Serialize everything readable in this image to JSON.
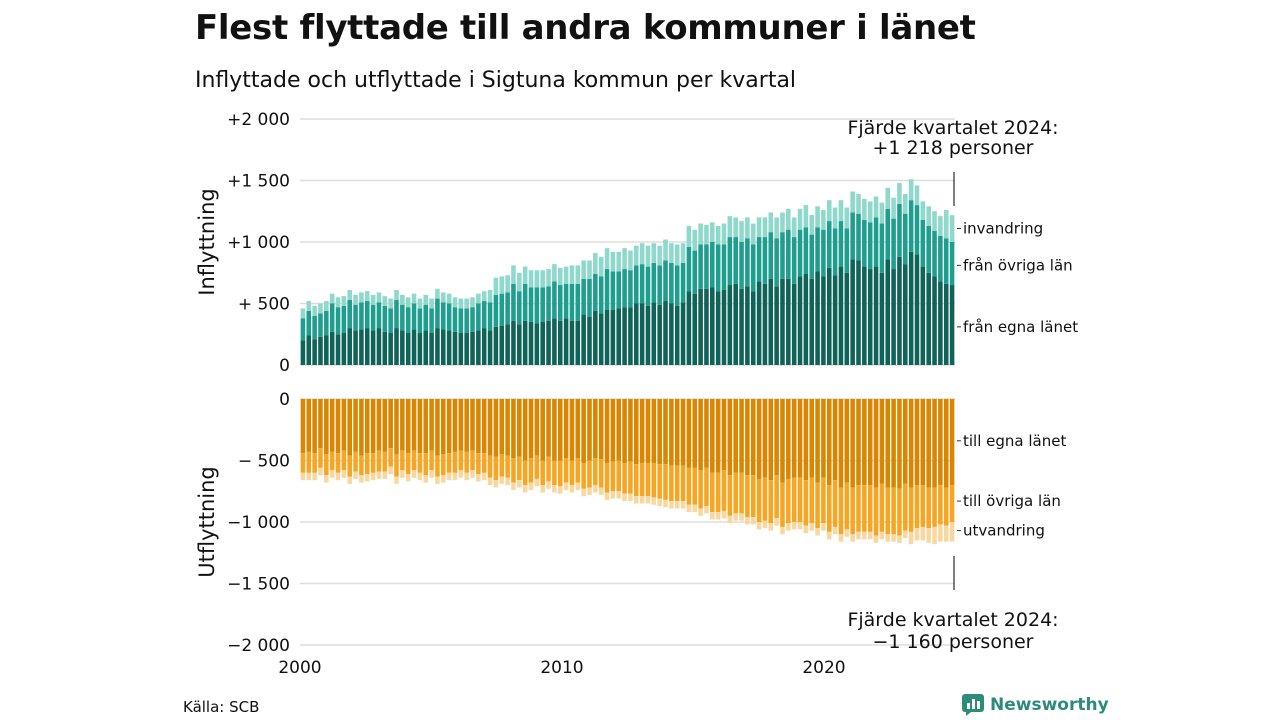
{
  "title": "Flest flyttade till andra kommuner i länet",
  "subtitle": "Inflyttade och utflyttade i Sigtuna kommun per kvartal",
  "source": "Källa: SCB",
  "brand": "Newsworthy",
  "colors": {
    "in_own": "#0f6358",
    "in_other": "#1e9e8e",
    "in_immig": "#8ed8cc",
    "out_own": "#db8600",
    "out_other": "#f7a623",
    "out_emig": "#f9d8a0",
    "grid": "#dddddd",
    "brand": "#2e8b7a"
  },
  "chart_data": {
    "type": "bar",
    "stacked": true,
    "x_range": [
      2000,
      2025
    ],
    "x_ticks": [
      "2000",
      "2010",
      "2020"
    ],
    "upper_panel": {
      "ylabel": "Inflyttning",
      "ylim": [
        0,
        2000
      ],
      "yticks": [
        {
          "v": 2000,
          "label": "+2 000"
        },
        {
          "v": 1500,
          "label": "+1 500"
        },
        {
          "v": 1000,
          "label": "+1 000"
        },
        {
          "v": 500,
          "label": "+  500"
        },
        {
          "v": 0,
          "label": "0"
        }
      ],
      "legend": [
        "invandring",
        "från övriga län",
        "från egna länet"
      ],
      "annotation": [
        "Fjärde kvartalet 2024:",
        "+1 218 personer"
      ]
    },
    "lower_panel": {
      "ylabel": "Utflyttning",
      "ylim": [
        -2000,
        0
      ],
      "yticks": [
        {
          "v": 0,
          "label": "0"
        },
        {
          "v": -500,
          "label": "−  500"
        },
        {
          "v": -1000,
          "label": "−1 000"
        },
        {
          "v": -1500,
          "label": "−1 500"
        },
        {
          "v": -2000,
          "label": "−2 000"
        }
      ],
      "legend": [
        "till egna länet",
        "till övriga län",
        "utvandring"
      ],
      "annotation": [
        "Fjärde kvartalet 2024:",
        "−1 160 personer"
      ]
    },
    "series_in": [
      {
        "name": "från egna länet",
        "values": [
          200,
          240,
          210,
          230,
          240,
          270,
          250,
          260,
          300,
          280,
          290,
          300,
          280,
          300,
          270,
          260,
          300,
          280,
          260,
          290,
          260,
          280,
          260,
          300,
          290,
          280,
          270,
          260,
          260,
          270,
          280,
          300,
          280,
          310,
          320,
          330,
          360,
          330,
          360,
          350,
          340,
          350,
          360,
          380,
          360,
          380,
          360,
          360,
          410,
          390,
          440,
          420,
          450,
          450,
          460,
          470,
          470,
          500,
          500,
          480,
          510,
          490,
          520,
          500,
          480,
          510,
          600,
          580,
          620,
          620,
          630,
          600,
          610,
          650,
          660,
          620,
          640,
          600,
          680,
          660,
          700,
          640,
          700,
          700,
          660,
          720,
          740,
          700,
          760,
          720,
          790,
          730,
          800,
          750,
          860,
          850,
          800,
          780,
          800,
          750,
          860,
          780,
          880,
          820,
          920,
          900,
          800,
          750,
          720,
          680,
          660,
          650
        ]
      },
      {
        "name": "från övriga län",
        "values": [
          180,
          200,
          190,
          190,
          200,
          230,
          220,
          220,
          230,
          210,
          220,
          220,
          210,
          210,
          210,
          200,
          230,
          210,
          210,
          210,
          200,
          210,
          200,
          240,
          220,
          220,
          200,
          200,
          200,
          200,
          220,
          220,
          230,
          260,
          260,
          260,
          300,
          270,
          300,
          280,
          290,
          280,
          280,
          300,
          290,
          280,
          300,
          300,
          290,
          310,
          300,
          300,
          330,
          310,
          300,
          310,
          300,
          310,
          320,
          320,
          320,
          320,
          330,
          330,
          330,
          320,
          360,
          350,
          360,
          360,
          370,
          380,
          370,
          390,
          380,
          380,
          390,
          380,
          360,
          380,
          380,
          390,
          380,
          400,
          380,
          380,
          380,
          360,
          360,
          380,
          380,
          380,
          370,
          360,
          380,
          380,
          380,
          380,
          400,
          400,
          410,
          410,
          430,
          410,
          420,
          400,
          380,
          380,
          370,
          370,
          370,
          350
        ]
      },
      {
        "name": "invandring",
        "values": [
          80,
          80,
          80,
          80,
          80,
          80,
          80,
          80,
          80,
          80,
          80,
          80,
          80,
          80,
          80,
          80,
          80,
          80,
          80,
          80,
          80,
          80,
          80,
          80,
          80,
          80,
          80,
          80,
          80,
          80,
          80,
          80,
          100,
          140,
          140,
          140,
          150,
          150,
          140,
          140,
          140,
          140,
          140,
          140,
          140,
          140,
          150,
          150,
          150,
          150,
          170,
          160,
          170,
          160,
          160,
          170,
          160,
          160,
          170,
          170,
          160,
          160,
          170,
          160,
          170,
          160,
          170,
          170,
          170,
          160,
          160,
          150,
          170,
          170,
          160,
          170,
          170,
          170,
          160,
          160,
          160,
          170,
          160,
          170,
          160,
          170,
          180,
          160,
          170,
          160,
          170,
          170,
          170,
          170,
          170,
          160,
          170,
          170,
          170,
          170,
          170,
          170,
          170,
          160,
          170,
          160,
          150,
          160,
          160,
          160,
          230,
          218
        ]
      }
    ],
    "series_out": [
      {
        "name": "till egna länet",
        "values": [
          440,
          430,
          440,
          400,
          450,
          430,
          440,
          420,
          460,
          430,
          460,
          440,
          440,
          420,
          430,
          400,
          450,
          420,
          440,
          420,
          440,
          440,
          420,
          460,
          450,
          440,
          430,
          420,
          430,
          420,
          440,
          440,
          460,
          470,
          450,
          460,
          480,
          470,
          500,
          480,
          460,
          500,
          470,
          500,
          500,
          480,
          500,
          480,
          520,
          500,
          480,
          490,
          520,
          510,
          500,
          520,
          510,
          530,
          520,
          520,
          520,
          530,
          530,
          540,
          540,
          540,
          560,
          560,
          580,
          560,
          600,
          600,
          580,
          620,
          600,
          600,
          620,
          620,
          650,
          640,
          660,
          620,
          680,
          650,
          640,
          640,
          660,
          640,
          680,
          640,
          700,
          660,
          720,
          680,
          720,
          700,
          700,
          700,
          720,
          690,
          720,
          720,
          730,
          690,
          720,
          700,
          700,
          720,
          720,
          700,
          720,
          700
        ]
      },
      {
        "name": "till övriga län",
        "values": [
          160,
          170,
          160,
          160,
          170,
          150,
          160,
          160,
          170,
          160,
          160,
          170,
          160,
          170,
          160,
          150,
          180,
          160,
          170,
          160,
          160,
          180,
          160,
          170,
          170,
          160,
          170,
          160,
          170,
          160,
          170,
          160,
          180,
          190,
          180,
          180,
          200,
          190,
          200,
          200,
          190,
          200,
          200,
          200,
          210,
          200,
          200,
          200,
          210,
          220,
          220,
          230,
          240,
          240,
          250,
          250,
          260,
          260,
          270,
          270,
          280,
          280,
          290,
          290,
          290,
          290,
          300,
          300,
          310,
          310,
          320,
          320,
          330,
          330,
          330,
          330,
          340,
          340,
          350,
          350,
          350,
          350,
          360,
          360,
          360,
          360,
          370,
          370,
          370,
          370,
          380,
          380,
          380,
          380,
          380,
          380,
          380,
          380,
          390,
          390,
          380,
          380,
          380,
          380,
          360,
          350,
          340,
          330,
          320,
          320,
          310,
          300
        ]
      },
      {
        "name": "utvandring",
        "values": [
          60,
          60,
          60,
          60,
          60,
          60,
          60,
          60,
          60,
          60,
          60,
          60,
          60,
          60,
          60,
          60,
          60,
          60,
          60,
          60,
          60,
          60,
          60,
          60,
          60,
          60,
          60,
          60,
          60,
          60,
          60,
          60,
          60,
          60,
          60,
          60,
          60,
          60,
          60,
          60,
          60,
          60,
          60,
          60,
          60,
          60,
          60,
          60,
          60,
          60,
          60,
          60,
          60,
          60,
          60,
          60,
          60,
          60,
          60,
          60,
          60,
          60,
          60,
          60,
          60,
          60,
          60,
          60,
          60,
          60,
          60,
          60,
          60,
          60,
          60,
          60,
          60,
          60,
          60,
          60,
          60,
          60,
          60,
          60,
          60,
          60,
          60,
          60,
          60,
          60,
          60,
          60,
          60,
          60,
          60,
          60,
          60,
          60,
          60,
          60,
          60,
          60,
          60,
          60,
          100,
          100,
          110,
          120,
          140,
          140,
          130,
          160
        ]
      }
    ]
  }
}
